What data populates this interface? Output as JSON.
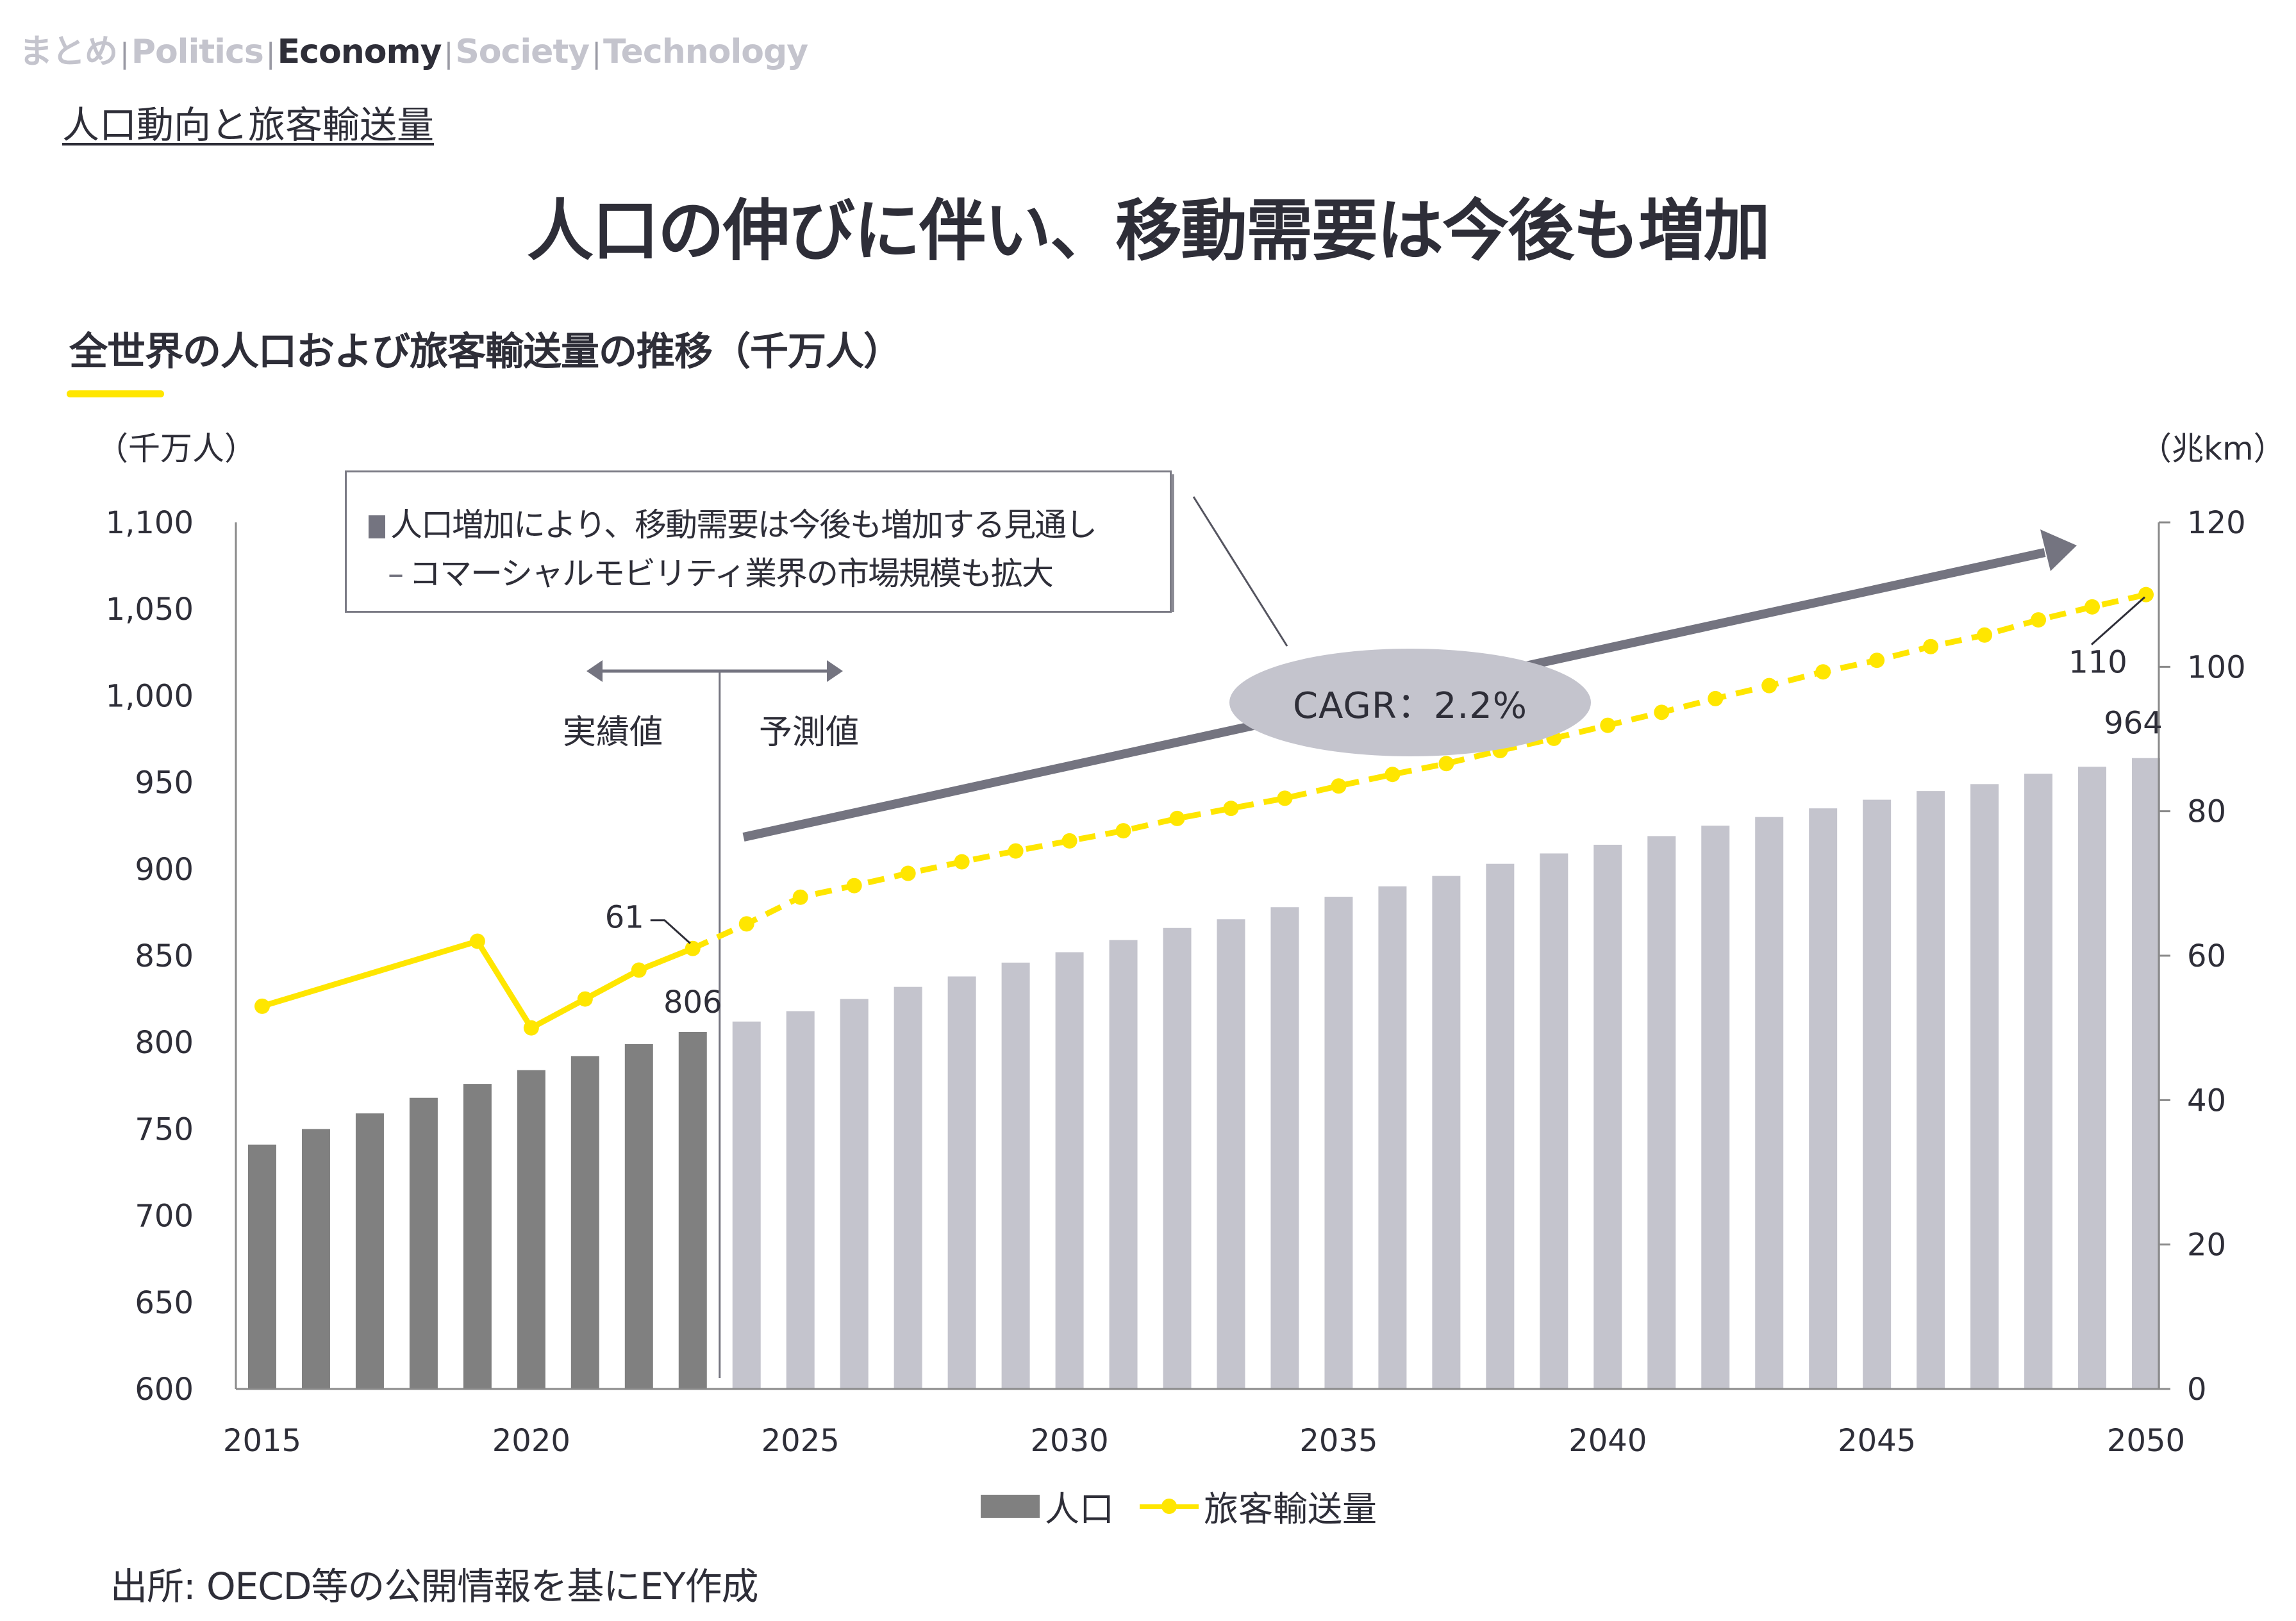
{
  "nav": {
    "items": [
      {
        "label": "まとめ",
        "active": false
      },
      {
        "label": "Politics",
        "active": false
      },
      {
        "label": "Economy",
        "active": true
      },
      {
        "label": "Society",
        "active": false
      },
      {
        "label": "Technology",
        "active": false
      }
    ],
    "separator": "|"
  },
  "section_link": "人口動向と旅客輸送量",
  "headline": "人口の伸びに伴い、移動需要は今後も増加",
  "chart_title": "全世界の人口および旅客輸送量の推移（千万人）",
  "note": {
    "line1": "人口増加により、移動需要は今後も増加する見通し",
    "line2_dash": "–",
    "line2": "コマーシャルモビリティ業界の市場規模も拡大"
  },
  "period_labels": {
    "actual": "実績値",
    "forecast": "予測値"
  },
  "cagr_label": "CAGR：2.2%",
  "legend": {
    "bar": "人口",
    "line": "旅客輸送量"
  },
  "source": "出所: OECD等の公開情報を基にEY作成",
  "colors": {
    "actual_bar": "#808080",
    "forecast_bar": "#c4c4cd",
    "line": "#ffe600",
    "arrow": "#747480",
    "text": "#2e2e38"
  },
  "chart_data": {
    "type": "bar+line",
    "title": "全世界の人口および旅客輸送量の推移（千万人）",
    "ylabel_left": "（千万人）",
    "ylabel_right": "（兆km）",
    "ylim_left": [
      600,
      1100
    ],
    "ylim_right": [
      0,
      120
    ],
    "yticks_left": [
      "600",
      "650",
      "700",
      "750",
      "800",
      "850",
      "900",
      "950",
      "1,000",
      "1,050",
      "1,100"
    ],
    "yticks_right": [
      "0",
      "20",
      "40",
      "60",
      "80",
      "100",
      "120"
    ],
    "xticks": [
      "2015",
      "2020",
      "2025",
      "2030",
      "2035",
      "2040",
      "2045",
      "2050"
    ],
    "x": [
      2015,
      2016,
      2017,
      2018,
      2019,
      2020,
      2021,
      2022,
      2023,
      2024,
      2025,
      2026,
      2027,
      2028,
      2029,
      2030,
      2031,
      2032,
      2033,
      2034,
      2035,
      2036,
      2037,
      2038,
      2039,
      2040,
      2041,
      2042,
      2043,
      2044,
      2045,
      2046,
      2047,
      2048,
      2049,
      2050
    ],
    "actual_until": 2023,
    "series": [
      {
        "name": "人口",
        "axis": "left",
        "type": "bar",
        "values": [
          741,
          750,
          759,
          768,
          776,
          784,
          792,
          799,
          806,
          812,
          818,
          825,
          832,
          838,
          846,
          852,
          859,
          866,
          871,
          878,
          884,
          890,
          896,
          903,
          909,
          914,
          919,
          925,
          930,
          935,
          940,
          945,
          949,
          955,
          959,
          964
        ]
      },
      {
        "name": "旅客輸送量",
        "axis": "right",
        "type": "line",
        "x": [
          2015,
          2019,
          2020,
          2021,
          2022,
          2023,
          2024,
          2025,
          2026,
          2027,
          2028,
          2029,
          2030,
          2031,
          2032,
          2033,
          2034,
          2035,
          2036,
          2037,
          2038,
          2039,
          2040,
          2041,
          2042,
          2043,
          2044,
          2045,
          2046,
          2047,
          2048,
          2049,
          2050
        ],
        "values": [
          53,
          62,
          50,
          54,
          58,
          61,
          64.4,
          68.1,
          69.7,
          71.4,
          73.0,
          74.5,
          75.9,
          77.3,
          79.0,
          80.4,
          81.8,
          83.5,
          85.1,
          86.6,
          88.4,
          90.1,
          91.9,
          93.7,
          95.6,
          97.4,
          99.3,
          100.9,
          102.8,
          104.4,
          106.5,
          108.3,
          110
        ]
      }
    ],
    "annotations": [
      {
        "text": "806",
        "series": "人口",
        "x": 2023
      },
      {
        "text": "964",
        "series": "人口",
        "x": 2050
      },
      {
        "text": "61",
        "series": "旅客輸送量",
        "x": 2023
      },
      {
        "text": "110",
        "series": "旅客輸送量",
        "x": 2050
      },
      {
        "text": "CAGR：2.2%"
      }
    ],
    "legend_position": "bottom",
    "grid": false
  }
}
